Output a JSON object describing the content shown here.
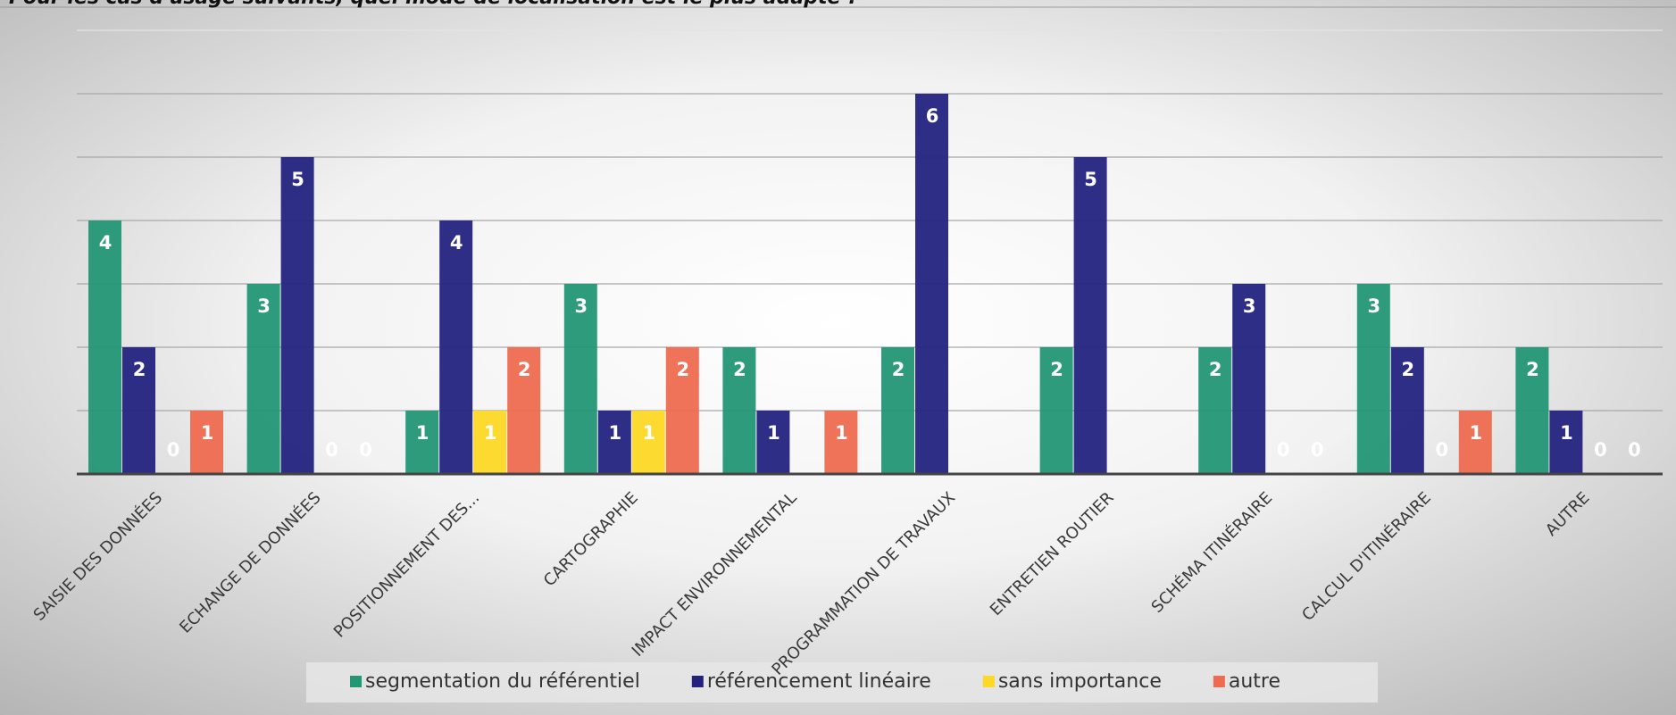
{
  "chart_data": {
    "type": "bar",
    "title": "Pour les cas d'usage suivants, quel mode de localisation est le plus adapté ?",
    "categories": [
      "SAISIE DES DONNÉES",
      "ECHANGE DE DONNÉES",
      "POSITIONNEMENT DES...",
      "CARTOGRAPHIE",
      "IMPACT ENVIRONNEMENTAL",
      "PROGRAMMATION DE TRAVAUX",
      "ENTRETIEN ROUTIER",
      "SCHÉMA ITINÉRAIRE",
      "CALCUL D'ITINÉRAIRE",
      "AUTRE"
    ],
    "series": [
      {
        "name": "segmentation du référentiel",
        "color": "#239676",
        "values": [
          4,
          3,
          1,
          3,
          2,
          2,
          2,
          2,
          3,
          2
        ]
      },
      {
        "name": "référencement linéaire",
        "color": "#23237f",
        "values": [
          2,
          5,
          4,
          1,
          1,
          6,
          5,
          3,
          2,
          1
        ]
      },
      {
        "name": "sans importance",
        "color": "#fdd824",
        "values": [
          0,
          0,
          1,
          1,
          null,
          null,
          null,
          0,
          0,
          0
        ]
      },
      {
        "name": "autre",
        "color": "#ed6b50",
        "values": [
          1,
          0,
          2,
          2,
          1,
          null,
          null,
          0,
          1,
          0
        ]
      }
    ],
    "ylim": [
      0,
      7
    ],
    "yticks": [
      0,
      1,
      2,
      3,
      4,
      5,
      6,
      7
    ],
    "grid": true,
    "legend": "bottom"
  }
}
